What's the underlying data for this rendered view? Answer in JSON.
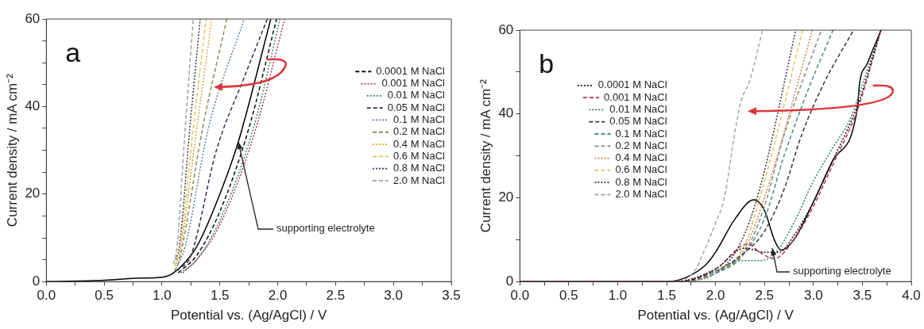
{
  "chart_data": [
    {
      "type": "line",
      "ylabel": "Current density / mA cm⁻²",
      "xlabel": "Potential vs. (Ag/AgCl) / V",
      "xlim": [
        0,
        3.5
      ],
      "xticks": [
        {
          "value": 0,
          "label": "0.0"
        },
        {
          "value": 0.25,
          "label": null
        },
        {
          "value": 0.5,
          "label": "0.5"
        },
        {
          "value": 0.75,
          "label": null
        },
        {
          "value": 1,
          "label": "1.0"
        },
        {
          "value": 1.25,
          "label": null
        },
        {
          "value": 1.5,
          "label": "1.5"
        },
        {
          "value": 1.75,
          "label": null
        },
        {
          "value": 2,
          "label": "2.0"
        },
        {
          "value": 2.25,
          "label": null
        },
        {
          "value": 2.5,
          "label": "2.5"
        },
        {
          "value": 2.75,
          "label": null
        },
        {
          "value": 3,
          "label": "3.0"
        },
        {
          "value": 3.25,
          "label": null
        },
        {
          "value": 3.5,
          "label": "3.5"
        }
      ],
      "ylim": [
        0,
        60
      ],
      "yticks": [
        0,
        {
          "value": 5,
          "label": null
        },
        {
          "value": 10,
          "label": null
        },
        {
          "value": 15,
          "label": null
        },
        20,
        {
          "value": 25,
          "label": null
        },
        {
          "value": 30,
          "label": null
        },
        {
          "value": 35,
          "label": null
        },
        40,
        {
          "value": 45,
          "label": null
        },
        {
          "value": 50,
          "label": null
        },
        {
          "value": 55,
          "label": null
        },
        60
      ],
      "legend": "right",
      "grid": false,
      "annotations": [
        "a",
        {
          "text": "supporting electrolyte",
          "x": 1.66,
          "y": 32
        }
      ],
      "series": [
        {
          "name": "0.0001 M NaCl",
          "color": "#111111",
          "line_style": "dashed",
          "x": [
            1.14,
            1.3,
            1.5,
            1.75,
            1.99
          ],
          "values": [
            2.0,
            6,
            16,
            35,
            60
          ]
        },
        {
          "name": "0.001 M NaCl",
          "color": "#b03060",
          "line_style": "dotted",
          "x": [
            1.18,
            1.3,
            1.5,
            1.8,
            2.06
          ],
          "values": [
            2.0,
            5,
            13,
            34,
            60
          ]
        },
        {
          "name": "0.01 M NaCl",
          "color": "#2e8b57",
          "line_style": "dotted",
          "x": [
            1.16,
            1.3,
            1.5,
            1.8,
            2.02
          ],
          "values": [
            2.0,
            5,
            14,
            36,
            60
          ]
        },
        {
          "name": "0.05 M NaCl",
          "color": "#2f2f4f",
          "line_style": "dashed",
          "x": [
            1.13,
            1.25,
            1.47,
            1.7,
            1.91
          ],
          "values": [
            2.5,
            6,
            30,
            46,
            60
          ]
        },
        {
          "name": "0.1 M NaCl",
          "color": "#5a7a9a",
          "line_style": "dotted",
          "x": [
            1.13,
            1.2,
            1.4,
            1.71
          ],
          "values": [
            3.5,
            8,
            35,
            60
          ]
        },
        {
          "name": "0.2 M NaCl",
          "color": "#8a8a50",
          "line_style": "dashed",
          "x": [
            1.11,
            1.15,
            1.35,
            1.56
          ],
          "values": [
            2.5,
            5,
            35,
            60
          ]
        },
        {
          "name": "0.4 M NaCl",
          "color": "#e0a030",
          "line_style": "dotted",
          "x": [
            1.12,
            1.15,
            1.3,
            1.43
          ],
          "values": [
            4,
            6,
            35,
            60
          ]
        },
        {
          "name": "0.6 M NaCl",
          "color": "#d8c860",
          "line_style": "dashed",
          "x": [
            1.11,
            1.15,
            1.27,
            1.38
          ],
          "values": [
            3.5,
            7,
            35,
            60
          ]
        },
        {
          "name": "0.8 M NaCl",
          "color": "#303050",
          "line_style": "dotted",
          "x": [
            1.12,
            1.15,
            1.24,
            1.33
          ],
          "values": [
            5,
            8,
            35,
            60
          ]
        },
        {
          "name": "2.0 M NaCl",
          "color": "#a0a0a0",
          "line_style": "dashed",
          "x": [
            1.1,
            1.13,
            1.2,
            1.27
          ],
          "values": [
            4,
            8,
            35,
            60
          ]
        },
        {
          "color": "#000000",
          "line_style": "solid",
          "x": [
            0,
            0.5,
            0.8,
            1.0,
            1.1,
            1.3,
            1.5,
            1.66,
            1.94
          ],
          "values": [
            0,
            0.3,
            0.8,
            1.0,
            2,
            8,
            20,
            32,
            60
          ]
        }
      ]
    },
    {
      "type": "line",
      "ylabel": "Current density / mA cm⁻²",
      "xlabel": "Potential vs. (Ag/AgCl) / V",
      "xlim": [
        0,
        4
      ],
      "xticks": [
        {
          "value": 0,
          "label": "0.0"
        },
        {
          "value": 0.25,
          "label": null
        },
        {
          "value": 0.5,
          "label": "0.5"
        },
        {
          "value": 0.75,
          "label": null
        },
        {
          "value": 1,
          "label": "1.0"
        },
        {
          "value": 1.25,
          "label": null
        },
        {
          "value": 1.5,
          "label": "1.5"
        },
        {
          "value": 1.75,
          "label": null
        },
        {
          "value": 2,
          "label": "2.0"
        },
        {
          "value": 2.25,
          "label": null
        },
        {
          "value": 2.5,
          "label": "2.5"
        },
        {
          "value": 2.75,
          "label": null
        },
        {
          "value": 3,
          "label": "3.0"
        },
        {
          "value": 3.25,
          "label": null
        },
        {
          "value": 3.5,
          "label": "3.5"
        },
        {
          "value": 3.75,
          "label": null
        },
        {
          "value": 4,
          "label": "4.0"
        }
      ],
      "ylim": [
        0,
        60
      ],
      "yticks": [
        0,
        {
          "value": 10,
          "label": null
        },
        20,
        {
          "value": 30,
          "label": null
        },
        40,
        {
          "value": 50,
          "label": null
        },
        60
      ],
      "legend": "left",
      "grid": false,
      "annotations": [
        "b",
        {
          "text": "supporting electrolyte",
          "x": 2.58,
          "y": 8
        }
      ],
      "series": [
        {
          "name": "0.0001 M NaCl",
          "color": "#111111",
          "line_style": "dotted",
          "x": [
            0,
            1.6,
            2.0,
            2.3,
            2.5,
            2.65,
            2.8,
            3.0,
            3.2,
            3.45,
            3.69
          ],
          "values": [
            0,
            0,
            3,
            8,
            7,
            7,
            11,
            19,
            29,
            42,
            60
          ]
        },
        {
          "name": "0.001 M NaCl",
          "color": "#b03060",
          "line_style": "dashed",
          "x": [
            0,
            1.6,
            2.0,
            2.33,
            2.45,
            2.6,
            2.8,
            3.0,
            3.2,
            3.45,
            3.69
          ],
          "values": [
            0,
            0,
            3,
            9,
            7,
            5.5,
            10,
            18,
            28,
            41,
            60
          ]
        },
        {
          "name": "0.01 M NaCl",
          "color": "#2e7b6b",
          "line_style": "dotted",
          "x": [
            0,
            1.6,
            2.0,
            2.25,
            2.45,
            2.6,
            2.8,
            3.0,
            3.2,
            3.38,
            3.5,
            3.69
          ],
          "values": [
            0,
            0,
            2.5,
            5,
            5,
            6.5,
            14,
            24,
            32,
            39,
            47,
            60
          ]
        },
        {
          "name": "0.05 M NaCl",
          "color": "#333344",
          "line_style": "dashed",
          "x": [
            0,
            1.6,
            2.0,
            2.3,
            2.5,
            2.7,
            2.88,
            3.1,
            3.41
          ],
          "values": [
            0,
            0,
            2.5,
            7,
            12,
            22,
            35,
            47,
            60
          ]
        },
        {
          "name": "0.1 M NaCl",
          "color": "#4a8a8a",
          "line_style": "dashed",
          "x": [
            0,
            1.6,
            2.0,
            2.3,
            2.5,
            2.7,
            2.95,
            3.2
          ],
          "values": [
            0,
            0,
            2,
            7,
            15,
            30,
            46,
            60
          ]
        },
        {
          "name": "0.2 M NaCl",
          "color": "#8a8a80",
          "line_style": "dashed",
          "x": [
            0,
            1.6,
            2.0,
            2.3,
            2.5,
            2.7,
            3.08
          ],
          "values": [
            0,
            0,
            2,
            7,
            18,
            35,
            60
          ]
        },
        {
          "name": "0.4 M NaCl",
          "color": "#d08040",
          "line_style": "dotted",
          "x": [
            0,
            1.6,
            2.0,
            2.3,
            2.5,
            2.99
          ],
          "values": [
            0,
            0,
            2,
            8,
            20,
            60
          ]
        },
        {
          "name": "0.6 M NaCl",
          "color": "#d8c860",
          "line_style": "dashed",
          "x": [
            0,
            1.6,
            2.0,
            2.3,
            2.5,
            2.89
          ],
          "values": [
            0,
            0,
            2,
            9,
            24,
            60
          ]
        },
        {
          "name": "0.8 M NaCl",
          "color": "#303040",
          "line_style": "dotted",
          "x": [
            0,
            1.6,
            2.0,
            2.25,
            2.45,
            2.82
          ],
          "values": [
            0,
            0,
            2,
            9,
            22,
            60
          ]
        },
        {
          "name": "2.0 M NaCl",
          "color": "#a8a8a8",
          "line_style": "dashed",
          "x": [
            0,
            1.6,
            1.8,
            1.86,
            2.0,
            2.09,
            2.2,
            2.26,
            2.35,
            2.48
          ],
          "values": [
            0,
            0,
            3,
            6,
            14,
            20,
            36,
            43,
            48,
            60
          ]
        },
        {
          "color": "#000000",
          "line_style": "solid",
          "x": [
            0,
            1.5,
            1.7,
            1.9,
            2.0,
            2.2,
            2.39,
            2.5,
            2.6,
            2.67,
            2.8,
            3.0,
            3.2,
            3.45,
            3.47,
            3.55,
            3.69
          ],
          "values": [
            0,
            0,
            1,
            4,
            7,
            15,
            19.5,
            17,
            10,
            7.5,
            10,
            19,
            29,
            41.5,
            47,
            52,
            60
          ]
        }
      ]
    }
  ]
}
